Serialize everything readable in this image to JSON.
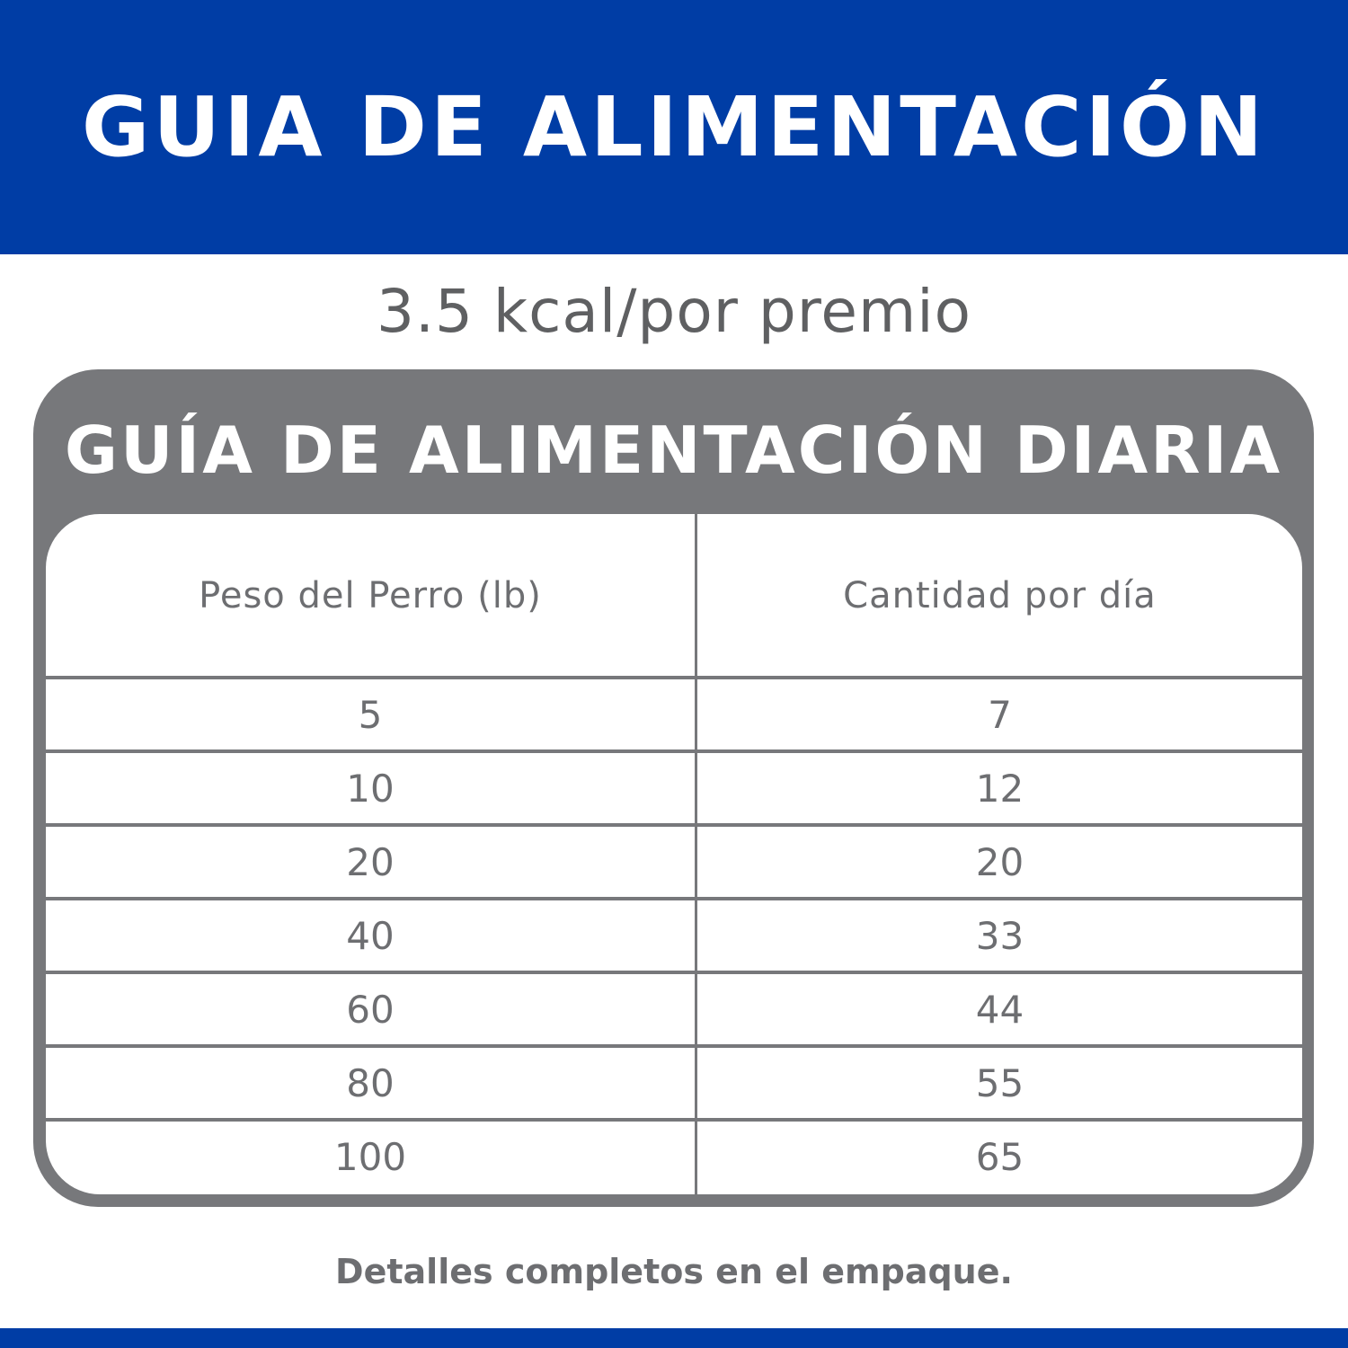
{
  "header": {
    "title": "GUIA DE ALIMENTACIÓN"
  },
  "subtitle": "3.5 kcal/por premio",
  "table": {
    "title": "GUÍA DE ALIMENTACIÓN DIARIA",
    "columns": [
      "Peso del Perro (lb)",
      "Cantidad por día"
    ],
    "rows": [
      [
        "5",
        "7"
      ],
      [
        "10",
        "12"
      ],
      [
        "20",
        "20"
      ],
      [
        "40",
        "33"
      ],
      [
        "60",
        "44"
      ],
      [
        "80",
        "55"
      ],
      [
        "100",
        "65"
      ]
    ]
  },
  "footer": "Detalles completos en el empaque.",
  "colors": {
    "brand_blue": "#003DA5",
    "gray": "#77787B"
  }
}
